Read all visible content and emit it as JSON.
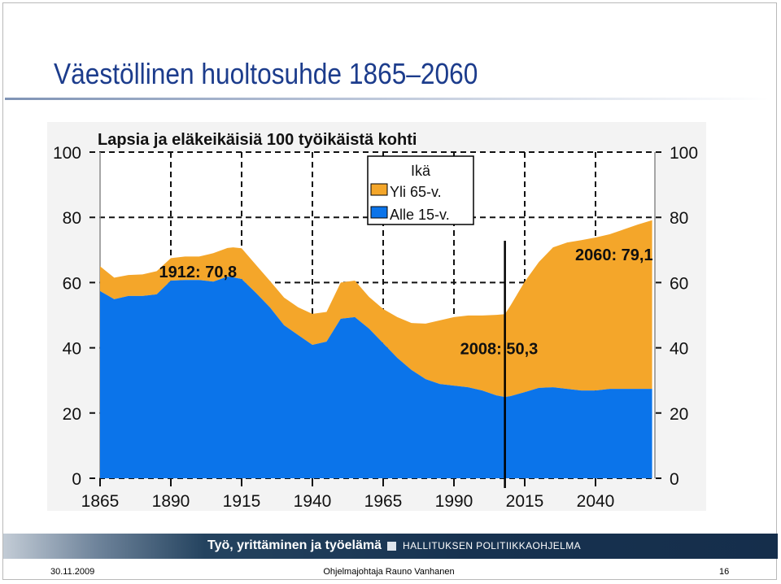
{
  "slide": {
    "title": "Väestöllinen huoltosuhde 1865–2060",
    "date": "30.11.2009",
    "author": "Ohjelmajohtaja Rauno Vanhanen",
    "page_number": "16"
  },
  "footer_bar": {
    "left_text": "Työ, yrittäminen ja työelämä",
    "right_text": "HALLITUKSEN POLITIIKKAOHJELMA"
  },
  "colors": {
    "title": "#1c3c8c",
    "over_65": "#f4a62a",
    "under_15": "#0b74ea",
    "footer": "#173250"
  },
  "chart_data": {
    "type": "area",
    "stacked": true,
    "title": "Lapsia ja eläkeikäisiä 100 työikäistä kohti",
    "legend_title": "Ikä",
    "legend_position": "top-center",
    "grid": true,
    "xlim": [
      1865,
      2060
    ],
    "ylim": [
      0,
      100
    ],
    "xticks": [
      1865,
      1890,
      1915,
      1940,
      1965,
      1990,
      2015,
      2040
    ],
    "yticks": [
      0,
      20,
      40,
      60,
      80,
      100
    ],
    "x": [
      1865,
      1870,
      1875,
      1880,
      1885,
      1890,
      1895,
      1900,
      1905,
      1910,
      1912,
      1915,
      1920,
      1925,
      1930,
      1935,
      1940,
      1945,
      1950,
      1955,
      1960,
      1965,
      1970,
      1975,
      1980,
      1985,
      1990,
      1995,
      2000,
      2005,
      2008,
      2010,
      2015,
      2020,
      2025,
      2030,
      2035,
      2040,
      2045,
      2050,
      2055,
      2060
    ],
    "series": [
      {
        "name": "Alle 15-v.",
        "values": [
          57.4,
          54.9,
          55.9,
          55.9,
          56.4,
          60.6,
          60.8,
          60.8,
          60.3,
          61.8,
          61.6,
          61.1,
          56.9,
          52.4,
          46.9,
          43.9,
          40.9,
          41.9,
          48.9,
          49.4,
          45.9,
          41.4,
          36.9,
          33.2,
          30.4,
          28.9,
          28.4,
          27.9,
          26.9,
          25.4,
          24.9,
          25.2,
          26.4,
          27.7,
          27.9,
          27.4,
          26.9,
          26.9,
          27.4,
          27.4,
          27.4,
          27.4
        ]
      },
      {
        "name": "Yli 65-v.",
        "values": [
          7.6,
          6.6,
          6.4,
          6.6,
          7.1,
          6.9,
          7.2,
          7.2,
          8.7,
          8.8,
          9.2,
          9.4,
          8.6,
          8.1,
          8.5,
          8.5,
          9.5,
          9.1,
          11.1,
          11.2,
          9.7,
          10.5,
          12.5,
          14.4,
          17.0,
          19.5,
          21.0,
          22.0,
          23.0,
          24.7,
          25.4,
          27.8,
          33.9,
          38.6,
          42.9,
          44.9,
          46.1,
          46.9,
          47.4,
          48.9,
          50.4,
          51.7
        ]
      }
    ],
    "annotations": [
      {
        "text": "1912: 70,8",
        "year": 1912,
        "value": 70.8
      },
      {
        "text": "2060: 79,1",
        "year": 2060,
        "value": 79.1
      },
      {
        "text": "2008: 50,3",
        "year": 2008,
        "value": 50.3
      }
    ],
    "marker_year": 2008
  }
}
